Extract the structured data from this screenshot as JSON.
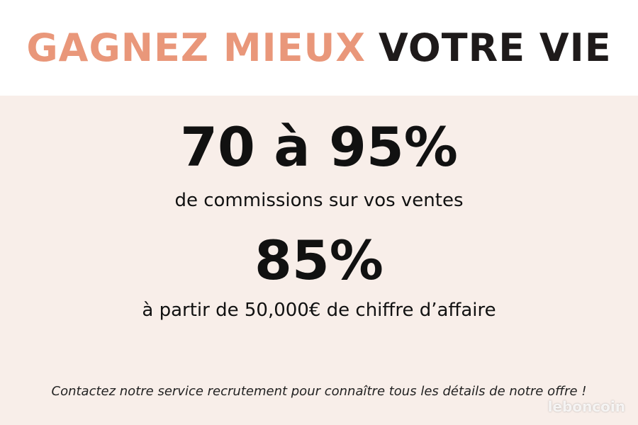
{
  "header": {
    "title_part1": "GAGNEZ MIEUX",
    "title_part2": "VOTRE VIE"
  },
  "offers": [
    {
      "headline": "70 à 95%",
      "text": "de commissions sur vos ventes"
    },
    {
      "headline": "85%",
      "text": "à partir de 50,000€ de chiffre d’affaire"
    }
  ],
  "footer": "Contactez notre service recrutement pour connaître tous les détails de notre offre !",
  "watermark": "leboncoin"
}
